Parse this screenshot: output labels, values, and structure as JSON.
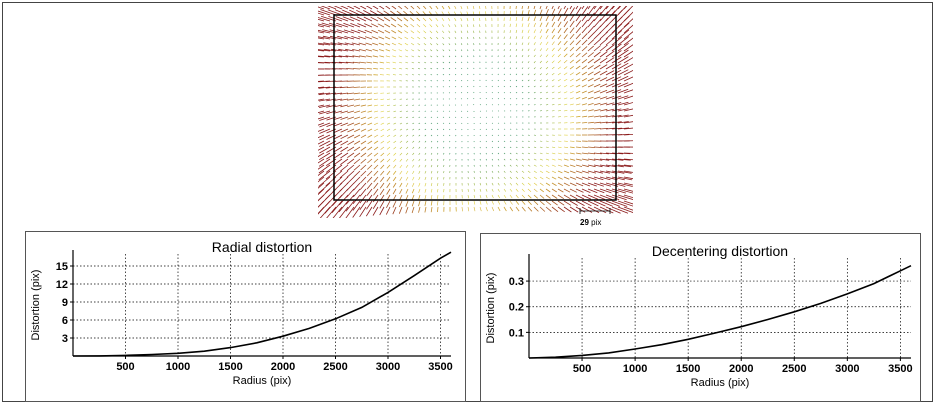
{
  "vector_field": {
    "scale_value": "29",
    "scale_unit": "pix",
    "colors": {
      "inner": "#2e8b57",
      "mid": "#e3d23a",
      "outer": "#8b1a1a",
      "frame": "#000000"
    }
  },
  "chart_data": [
    {
      "type": "line",
      "title": "Radial distortion",
      "xlabel": "Radius (pix)",
      "ylabel": "Distortion (pix)",
      "xlim": [
        0,
        3600
      ],
      "ylim": [
        0,
        17
      ],
      "xticks": [
        500,
        1000,
        1500,
        2000,
        2500,
        3000,
        3500
      ],
      "yticks": [
        3,
        6,
        9,
        12,
        15
      ],
      "grid": true,
      "x": [
        0,
        250,
        500,
        750,
        1000,
        1250,
        1500,
        1750,
        2000,
        2250,
        2500,
        2750,
        3000,
        3250,
        3500,
        3600
      ],
      "y": [
        0,
        0.02,
        0.1,
        0.25,
        0.45,
        0.8,
        1.4,
        2.2,
        3.3,
        4.6,
        6.2,
        8.1,
        10.6,
        13.4,
        16.3,
        17.3
      ],
      "color": "#000000"
    },
    {
      "type": "line",
      "title": "Decentering distortion",
      "xlabel": "Radius (pix)",
      "ylabel": "Distortion (pix)",
      "xlim": [
        0,
        3600
      ],
      "ylim": [
        0,
        0.39
      ],
      "xticks": [
        500,
        1000,
        1500,
        2000,
        2500,
        3000,
        3500
      ],
      "yticks": [
        0.1,
        0.2,
        0.3
      ],
      "grid": true,
      "x": [
        0,
        250,
        500,
        750,
        1000,
        1250,
        1500,
        1750,
        2000,
        2250,
        2500,
        2750,
        3000,
        3250,
        3500,
        3600
      ],
      "y": [
        0,
        0.003,
        0.01,
        0.02,
        0.035,
        0.052,
        0.073,
        0.097,
        0.122,
        0.15,
        0.18,
        0.213,
        0.25,
        0.29,
        0.34,
        0.36
      ],
      "color": "#000000"
    }
  ]
}
